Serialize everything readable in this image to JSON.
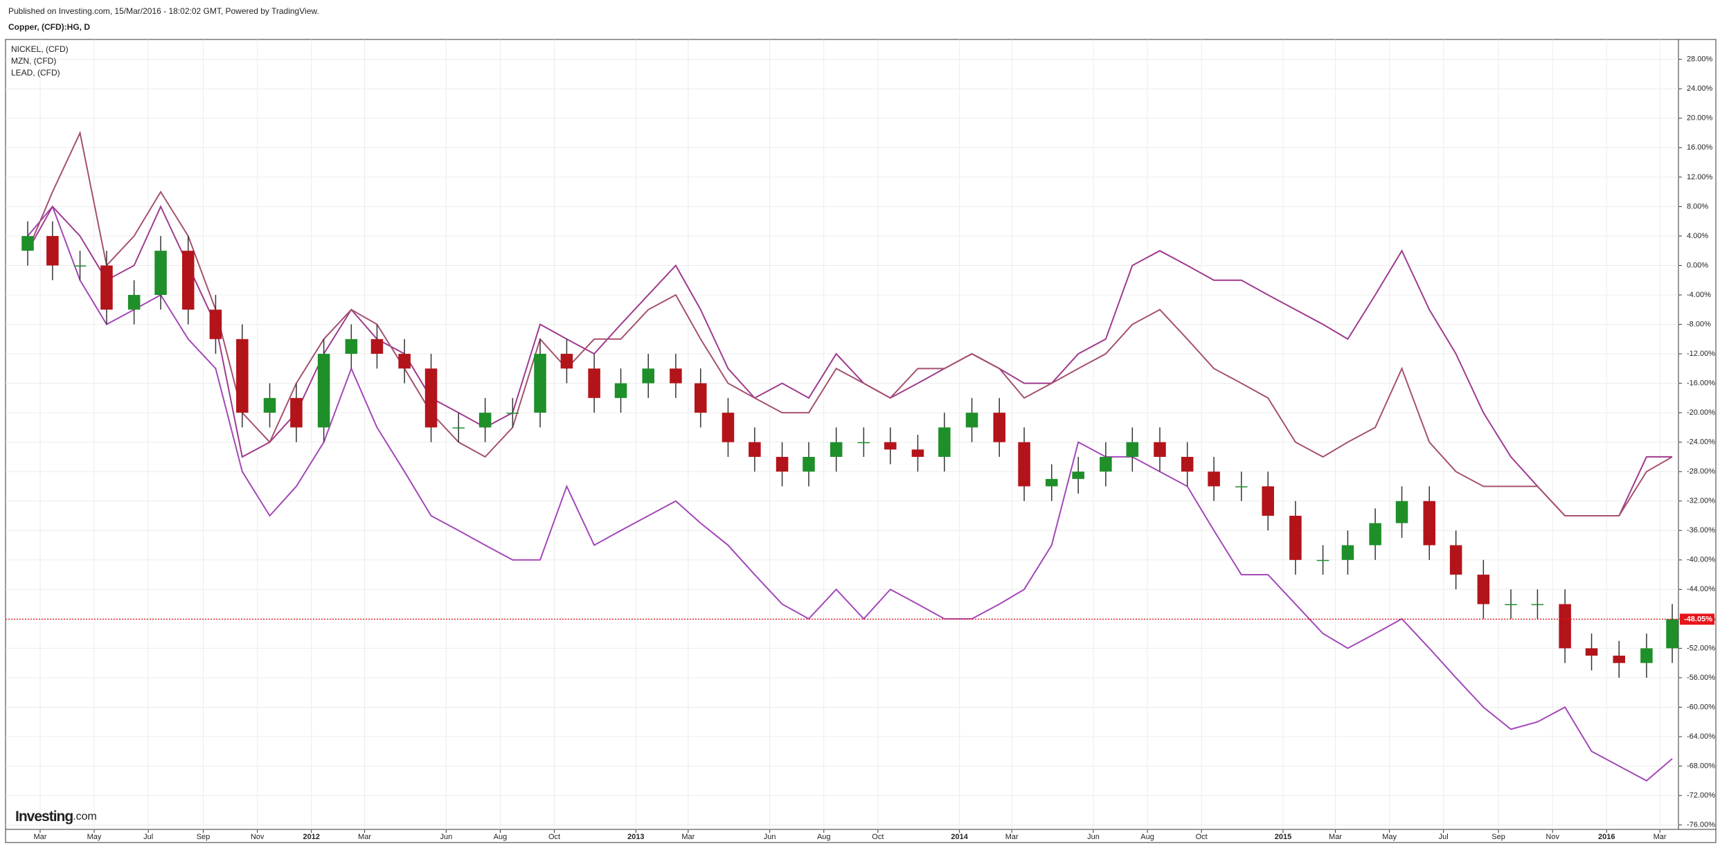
{
  "header": {
    "published": "Published on Investing.com, 15/Mar/2016 - 18:02:02 GMT, Powered by TradingView."
  },
  "watermark": {
    "brand": "Investing",
    "suffix": ".com"
  },
  "chart_data": {
    "type": "candlestick",
    "grid": true,
    "xlim": [
      "2011-01-21",
      "2016-03-22"
    ],
    "ylim": [
      -76.6,
      30.7
    ],
    "xticks": [
      {
        "value": "2011-03-01",
        "label": "Mar"
      },
      {
        "value": "2011-05-01",
        "label": "May"
      },
      {
        "value": "2011-07-01",
        "label": "Jul"
      },
      {
        "value": "2011-09-01",
        "label": "Sep"
      },
      {
        "value": "2011-11-01",
        "label": "Nov"
      },
      {
        "value": "2012-01-01",
        "label": "2012"
      },
      {
        "value": "2012-03-01",
        "label": "Mar"
      },
      {
        "value": "2012-06-01",
        "label": "Jun"
      },
      {
        "value": "2012-08-01",
        "label": "Aug"
      },
      {
        "value": "2012-10-01",
        "label": "Oct"
      },
      {
        "value": "2013-01-01",
        "label": "2013"
      },
      {
        "value": "2013-03-01",
        "label": "Mar"
      },
      {
        "value": "2013-06-01",
        "label": "Jun"
      },
      {
        "value": "2013-08-01",
        "label": "Aug"
      },
      {
        "value": "2013-10-01",
        "label": "Oct"
      },
      {
        "value": "2014-01-01",
        "label": "2014"
      },
      {
        "value": "2014-03-01",
        "label": "Mar"
      },
      {
        "value": "2014-06-01",
        "label": "Jun"
      },
      {
        "value": "2014-08-01",
        "label": "Aug"
      },
      {
        "value": "2014-10-01",
        "label": "Oct"
      },
      {
        "value": "2015-01-01",
        "label": "2015"
      },
      {
        "value": "2015-03-01",
        "label": "Mar"
      },
      {
        "value": "2015-05-01",
        "label": "May"
      },
      {
        "value": "2015-07-01",
        "label": "Jul"
      },
      {
        "value": "2015-09-01",
        "label": "Sep"
      },
      {
        "value": "2015-11-01",
        "label": "Nov"
      },
      {
        "value": "2016-01-01",
        "label": "2016"
      },
      {
        "value": "2016-03-01",
        "label": "Mar"
      }
    ],
    "yticks": [
      {
        "value": 28,
        "label": "28.00%"
      },
      {
        "value": 24,
        "label": "24.00%"
      },
      {
        "value": 20,
        "label": "20.00%"
      },
      {
        "value": 16,
        "label": "16.00%"
      },
      {
        "value": 12,
        "label": "12.00%"
      },
      {
        "value": 8,
        "label": "8.00%"
      },
      {
        "value": 4,
        "label": "4.00%"
      },
      {
        "value": 0,
        "label": "0.00%"
      },
      {
        "value": -4,
        "label": "-4.00%"
      },
      {
        "value": -8,
        "label": "-8.00%"
      },
      {
        "value": -12,
        "label": "-12.00%"
      },
      {
        "value": -16,
        "label": "-16.00%"
      },
      {
        "value": -20,
        "label": "-20.00%"
      },
      {
        "value": -24,
        "label": "-24.00%"
      },
      {
        "value": -28,
        "label": "-28.00%"
      },
      {
        "value": -32,
        "label": "-32.00%"
      },
      {
        "value": -36,
        "label": "-36.00%"
      },
      {
        "value": -40,
        "label": "-40.00%"
      },
      {
        "value": -44,
        "label": "-44.00%"
      },
      {
        "value": -48,
        "label": "-48.00%"
      },
      {
        "value": -52,
        "label": "-52.00%"
      },
      {
        "value": -56,
        "label": "-56.00%"
      },
      {
        "value": -60,
        "label": "-60.00%"
      },
      {
        "value": -64,
        "label": "-64.00%"
      },
      {
        "value": -68,
        "label": "-68.00%"
      },
      {
        "value": -72,
        "label": "-72.00%"
      },
      {
        "value": -76,
        "label": "-76.00%"
      }
    ],
    "price_line": {
      "value": -48.05,
      "label": "-48.05%",
      "color": "#e8141b"
    },
    "x": [
      "2011-02-15",
      "2011-03-15",
      "2011-04-15",
      "2011-05-15",
      "2011-06-15",
      "2011-07-15",
      "2011-08-15",
      "2011-09-15",
      "2011-10-15",
      "2011-11-15",
      "2011-12-15",
      "2012-01-15",
      "2012-02-15",
      "2012-03-15",
      "2012-04-15",
      "2012-05-15",
      "2012-06-15",
      "2012-07-15",
      "2012-08-15",
      "2012-09-15",
      "2012-10-15",
      "2012-11-15",
      "2012-12-15",
      "2013-01-15",
      "2013-02-15",
      "2013-03-15",
      "2013-04-15",
      "2013-05-15",
      "2013-06-15",
      "2013-07-15",
      "2013-08-15",
      "2013-09-15",
      "2013-10-15",
      "2013-11-15",
      "2013-12-15",
      "2014-01-15",
      "2014-02-15",
      "2014-03-15",
      "2014-04-15",
      "2014-05-15",
      "2014-06-15",
      "2014-07-15",
      "2014-08-15",
      "2014-09-15",
      "2014-10-15",
      "2014-11-15",
      "2014-12-15",
      "2015-01-15",
      "2015-02-15",
      "2015-03-15",
      "2015-04-15",
      "2015-05-15",
      "2015-06-15",
      "2015-07-15",
      "2015-08-15",
      "2015-09-15",
      "2015-10-15",
      "2015-11-15",
      "2015-12-15",
      "2016-01-15",
      "2016-02-15",
      "2016-03-15"
    ],
    "series": [
      {
        "name": "Copper, (CFD):HG, D",
        "type": "candlestick",
        "up_color": "#1f8f2a",
        "down_color": "#b3141a",
        "wick_color": "#333333",
        "open": [
          2,
          4,
          0,
          0,
          -6,
          -4,
          2,
          -6,
          -10,
          -20,
          -18,
          -22,
          -12,
          -10,
          -12,
          -14,
          -22,
          -22,
          -20,
          -20,
          -12,
          -14,
          -18,
          -16,
          -14,
          -16,
          -20,
          -24,
          -26,
          -28,
          -26,
          -24,
          -24,
          -25,
          -26,
          -22,
          -20,
          -24,
          -30,
          -29,
          -28,
          -26,
          -24,
          -26,
          -28,
          -30,
          -30,
          -34,
          -40,
          -40,
          -38,
          -35,
          -32,
          -38,
          -42,
          -46,
          -46,
          -46,
          -52,
          -53,
          -54,
          -52
        ],
        "high": [
          6,
          6,
          2,
          2,
          -2,
          4,
          4,
          -4,
          -8,
          -16,
          -16,
          -10,
          -8,
          -8,
          -10,
          -12,
          -20,
          -18,
          -18,
          -10,
          -10,
          -12,
          -14,
          -12,
          -12,
          -14,
          -18,
          -22,
          -24,
          -24,
          -22,
          -22,
          -22,
          -23,
          -20,
          -18,
          -18,
          -22,
          -27,
          -26,
          -24,
          -22,
          -22,
          -24,
          -26,
          -28,
          -28,
          -32,
          -38,
          -36,
          -33,
          -30,
          -30,
          -36,
          -40,
          -44,
          -44,
          -44,
          -50,
          -51,
          -50,
          -46
        ],
        "low": [
          0,
          -2,
          -2,
          -8,
          -8,
          -6,
          -8,
          -12,
          -22,
          -22,
          -24,
          -24,
          -14,
          -14,
          -16,
          -24,
          -24,
          -24,
          -22,
          -22,
          -16,
          -20,
          -20,
          -18,
          -18,
          -22,
          -26,
          -28,
          -30,
          -30,
          -28,
          -26,
          -27,
          -28,
          -28,
          -24,
          -26,
          -32,
          -32,
          -31,
          -30,
          -28,
          -28,
          -30,
          -32,
          -32,
          -36,
          -42,
          -42,
          -42,
          -40,
          -37,
          -40,
          -44,
          -48,
          -48,
          -48,
          -54,
          -55,
          -56,
          -56,
          -54
        ],
        "close": [
          4,
          0,
          0,
          -6,
          -4,
          2,
          -6,
          -10,
          -20,
          -18,
          -22,
          -12,
          -10,
          -12,
          -14,
          -22,
          -22,
          -20,
          -20,
          -12,
          -14,
          -18,
          -16,
          -14,
          -16,
          -20,
          -24,
          -26,
          -28,
          -26,
          -24,
          -24,
          -25,
          -26,
          -22,
          -20,
          -24,
          -30,
          -29,
          -28,
          -26,
          -24,
          -26,
          -28,
          -30,
          -30,
          -34,
          -40,
          -40,
          -38,
          -35,
          -32,
          -38,
          -42,
          -46,
          -46,
          -46,
          -52,
          -53,
          -54,
          -52,
          -48.05
        ]
      },
      {
        "name": "NICKEL,  (CFD)",
        "type": "line",
        "color": "#a347b8",
        "values": [
          4,
          8,
          -2,
          -8,
          -6,
          -4,
          -10,
          -14,
          -28,
          -34,
          -30,
          -24,
          -14,
          -22,
          -28,
          -34,
          -36,
          -38,
          -40,
          -40,
          -30,
          -38,
          -36,
          -34,
          -32,
          -35,
          -38,
          -42,
          -46,
          -48,
          -44,
          -48,
          -44,
          -46,
          -48,
          -48,
          -46,
          -44,
          -38,
          -24,
          -26,
          -26,
          -28,
          -30,
          -36,
          -42,
          -42,
          -46,
          -50,
          -52,
          -50,
          -48,
          -52,
          -56,
          -60,
          -63,
          -62,
          -60,
          -66,
          -68,
          -70,
          -67
        ]
      },
      {
        "name": "MZN,  (CFD)",
        "type": "line",
        "color": "#9e3a8e",
        "values": [
          2,
          8,
          4,
          -2,
          0,
          8,
          0,
          -8,
          -26,
          -24,
          -20,
          -12,
          -6,
          -10,
          -12,
          -18,
          -20,
          -22,
          -20,
          -8,
          -10,
          -12,
          -8,
          -4,
          0,
          -6,
          -14,
          -18,
          -16,
          -18,
          -12,
          -16,
          -18,
          -16,
          -14,
          -12,
          -14,
          -16,
          -16,
          -12,
          -10,
          0,
          2,
          0,
          -2,
          -2,
          -4,
          -6,
          -8,
          -10,
          -4,
          2,
          -6,
          -12,
          -20,
          -26,
          -30,
          -34,
          -34,
          -34,
          -26,
          -26
        ]
      },
      {
        "name": "LEAD,  (CFD)",
        "type": "line",
        "color": "#a5506e",
        "values": [
          2,
          10,
          18,
          0,
          4,
          10,
          4,
          -6,
          -20,
          -24,
          -16,
          -10,
          -6,
          -8,
          -14,
          -20,
          -24,
          -26,
          -22,
          -10,
          -14,
          -10,
          -10,
          -6,
          -4,
          -10,
          -16,
          -18,
          -20,
          -20,
          -14,
          -16,
          -18,
          -14,
          -14,
          -12,
          -14,
          -18,
          -16,
          -14,
          -12,
          -8,
          -6,
          -10,
          -14,
          -16,
          -18,
          -24,
          -26,
          -24,
          -22,
          -14,
          -24,
          -28,
          -30,
          -30,
          -30,
          -34,
          -34,
          -34,
          -28,
          -26
        ]
      }
    ]
  }
}
